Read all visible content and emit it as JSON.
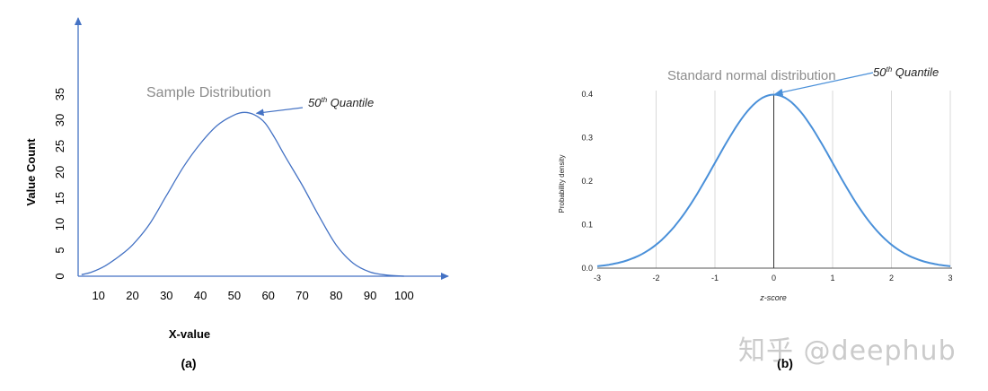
{
  "chart_data": [
    {
      "panel": "(a)",
      "type": "line",
      "title": "Sample Distribution",
      "xlabel": "X-value",
      "ylabel": "Value Count",
      "xlim": [
        4,
        113
      ],
      "ylim": [
        0,
        37
      ],
      "x_ticks": [
        10,
        20,
        30,
        40,
        50,
        60,
        70,
        80,
        90,
        100
      ],
      "y_ticks": [
        0,
        5,
        10,
        15,
        20,
        25,
        30,
        35
      ],
      "color": "#4472c4",
      "series": [
        {
          "x": [
            5,
            8,
            12,
            16,
            20,
            25,
            30,
            35,
            40,
            45,
            50,
            53,
            56,
            59,
            62,
            65,
            70,
            75,
            80,
            85,
            90,
            95,
            100
          ],
          "values": [
            0.3,
            0.8,
            2,
            3.8,
            6,
            10,
            15.5,
            21,
            25.5,
            29,
            31,
            31.5,
            31,
            29.5,
            26.5,
            23,
            17.5,
            11.5,
            6,
            2.5,
            0.8,
            0.2,
            0
          ]
        }
      ],
      "annotation": {
        "text_main": "50",
        "text_sup": "th",
        "text_rest": " Quantile",
        "target": [
          56,
          31.5
        ]
      }
    },
    {
      "panel": "(b)",
      "type": "line",
      "title": "Standard normal distribution",
      "xlabel": "z-score",
      "ylabel": "Probability density",
      "xlim": [
        -3,
        3
      ],
      "ylim": [
        0,
        0.4
      ],
      "x_ticks": [
        -3,
        -2,
        -1,
        0,
        1,
        2,
        3
      ],
      "y_ticks": [
        "0.0",
        "0.1",
        "0.2",
        "0.3",
        "0.4"
      ],
      "grid": "vertical",
      "color": "#4a90d9",
      "series": [
        {
          "x": [
            -3,
            -2.5,
            -2,
            -1.5,
            -1,
            -0.5,
            0,
            0.5,
            1,
            1.5,
            2,
            2.5,
            3
          ],
          "values": [
            0.004,
            0.018,
            0.054,
            0.13,
            0.242,
            0.352,
            0.399,
            0.352,
            0.242,
            0.13,
            0.054,
            0.018,
            0.004
          ]
        }
      ],
      "vline_at": 0,
      "annotation": {
        "text_main": "50",
        "text_sup": "th",
        "text_rest": " Quantile",
        "target": [
          0,
          0.399
        ]
      }
    }
  ],
  "watermark": "知乎 @deephub"
}
